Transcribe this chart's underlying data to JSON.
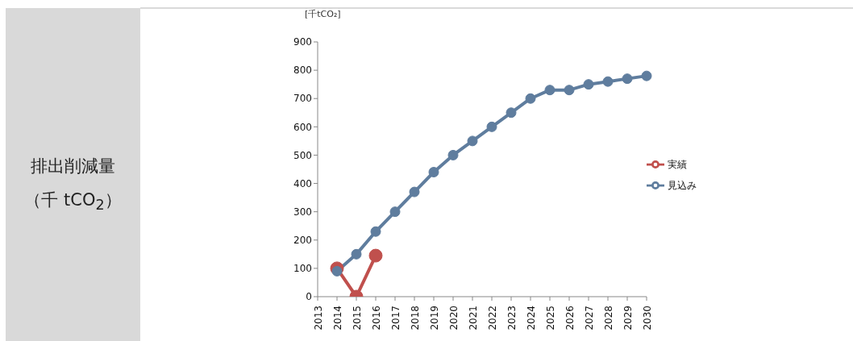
{
  "chart_data": {
    "type": "line",
    "title": "排出削減量",
    "subtitle": "（千 tCO$_{2}$）",
    "ylabel": "[千tCO₂]",
    "categories": [
      "2013",
      "2014",
      "2015",
      "2016",
      "2017",
      "2018",
      "2019",
      "2020",
      "2021",
      "2022",
      "2023",
      "2024",
      "2025",
      "2026",
      "2027",
      "2028",
      "2029",
      "2030"
    ],
    "series": [
      {
        "name": "実績",
        "color": "#c0504d",
        "values": [
          null,
          100,
          0,
          145,
          null,
          null,
          null,
          null,
          null,
          null,
          null,
          null,
          null,
          null,
          null,
          null,
          null,
          null
        ]
      },
      {
        "name": "見込み",
        "color": "#5f7d9e",
        "values": [
          null,
          90,
          150,
          230,
          300,
          370,
          440,
          500,
          550,
          600,
          650,
          700,
          730,
          730,
          750,
          760,
          770,
          780
        ]
      }
    ],
    "ylim": [
      0,
      900
    ],
    "yticks": [
      0,
      100,
      200,
      300,
      400,
      500,
      600,
      700,
      800,
      900
    ],
    "grid": false,
    "legend": "right",
    "marker": "circle",
    "line_style": "solid"
  }
}
